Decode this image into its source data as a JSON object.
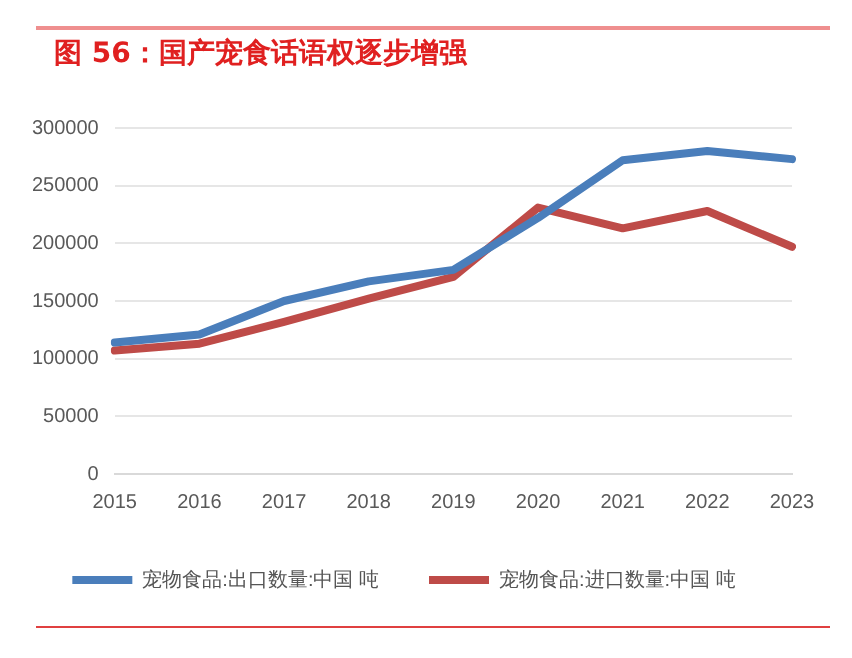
{
  "chart_data": {
    "type": "line",
    "title": "图 56：国产宠食话语权逐步增强",
    "categories": [
      "2015",
      "2016",
      "2017",
      "2018",
      "2019",
      "2020",
      "2021",
      "2022",
      "2023"
    ],
    "series": [
      {
        "name": "宠物食品:出口数量:中国 吨",
        "color": "#4a7ebb",
        "values": [
          114000,
          121000,
          150000,
          167000,
          177000,
          222000,
          272000,
          280000,
          273000
        ]
      },
      {
        "name": "宠物食品:进口数量:中国 吨",
        "color": "#be4b48",
        "values": [
          107000,
          113000,
          132000,
          152000,
          171000,
          231000,
          213000,
          228000,
          197000
        ]
      }
    ],
    "ylim": [
      0,
      300000
    ],
    "yticks": [
      0,
      50000,
      100000,
      150000,
      200000,
      250000,
      300000
    ],
    "grid": "y",
    "legend": "bottom",
    "marker": "none",
    "line_style": "solid"
  }
}
